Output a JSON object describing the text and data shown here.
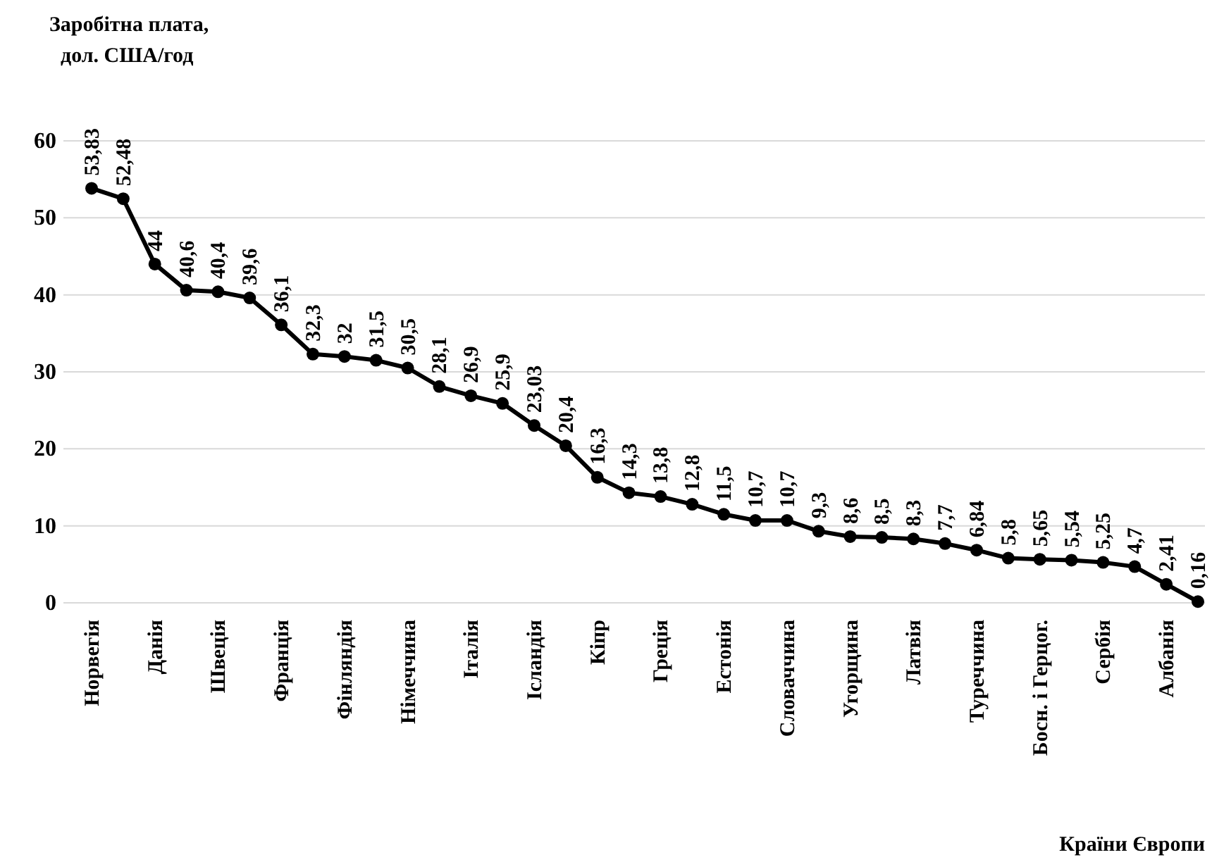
{
  "chart_data": {
    "type": "line",
    "ylabel": "Заробітна плата,\nдол. США/год",
    "xlabel": "Країни Європи",
    "categories": [
      "Норвегія",
      null,
      "Данія",
      null,
      "Швеція",
      null,
      "Франція",
      null,
      "Фінляндія",
      null,
      "Німеччина",
      null,
      "Італія",
      null,
      "Ісландія",
      null,
      "Кіпр",
      null,
      "Греція",
      null,
      "Естонія",
      null,
      "Словаччина",
      null,
      "Угорщина",
      null,
      "Латвія",
      null,
      "Туреччина",
      null,
      "Босн. і Герцог.",
      null,
      "Сербія",
      null,
      "Албанія",
      null
    ],
    "series": [
      {
        "color": "#000000",
        "values": [
          53.83,
          52.48,
          44,
          40.6,
          40.4,
          39.6,
          36.1,
          32.3,
          32,
          31.5,
          30.5,
          28.1,
          26.9,
          25.9,
          23.03,
          20.4,
          16.3,
          14.3,
          13.8,
          12.8,
          11.5,
          10.7,
          10.7,
          9.3,
          8.6,
          8.5,
          8.3,
          7.7,
          6.84,
          5.8,
          5.65,
          5.54,
          5.25,
          4.7,
          2.41,
          0.16
        ],
        "value_labels": [
          "53,83",
          "52,48",
          "44",
          "40,6",
          "40,4",
          "39,6",
          "36,1",
          "32,3",
          "32",
          "31,5",
          "30,5",
          "28,1",
          "26,9",
          "25,9",
          "23,03",
          "20,4",
          "16,3",
          "14,3",
          "13,8",
          "12,8",
          "11,5",
          "10,7",
          "10,7",
          "9,3",
          "8,6",
          "8,5",
          "8,3",
          "7,7",
          "6,84",
          "5,8",
          "5,65",
          "5,54",
          "5,25",
          "4,7",
          "2,41",
          "0,16"
        ]
      }
    ],
    "ylim": [
      0,
      60
    ],
    "yticks": [
      0,
      10,
      20,
      30,
      40,
      50,
      60
    ],
    "grid": "y",
    "marker": "circle",
    "line_style": "solid"
  }
}
